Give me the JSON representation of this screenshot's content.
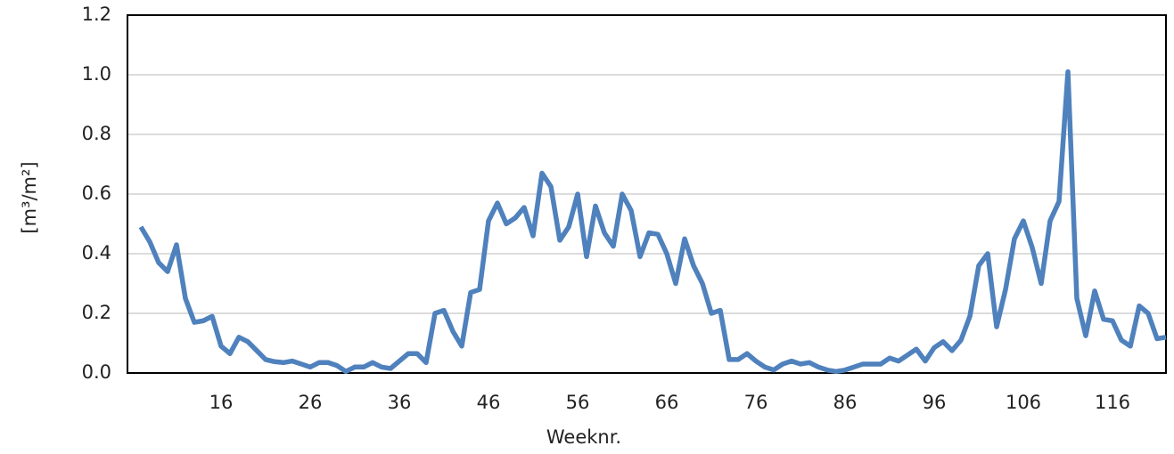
{
  "chart_data": {
    "type": "line",
    "xlabel": "Weeknr.",
    "ylabel": "[m³/m²]",
    "x": [
      7,
      8,
      9,
      10,
      11,
      12,
      13,
      14,
      15,
      16,
      17,
      18,
      19,
      20,
      21,
      22,
      23,
      24,
      25,
      26,
      27,
      28,
      29,
      30,
      31,
      32,
      33,
      34,
      35,
      36,
      37,
      38,
      39,
      40,
      41,
      42,
      43,
      44,
      45,
      46,
      47,
      48,
      49,
      50,
      51,
      52,
      53,
      54,
      55,
      56,
      57,
      58,
      59,
      60,
      61,
      62,
      63,
      64,
      65,
      66,
      67,
      68,
      69,
      70,
      71,
      72,
      73,
      74,
      75,
      76,
      77,
      78,
      79,
      80,
      81,
      82,
      83,
      84,
      85,
      86,
      87,
      88,
      89,
      90,
      91,
      92,
      93,
      94,
      95,
      96,
      97,
      98,
      99,
      100,
      101,
      102,
      103,
      104,
      105,
      106,
      107,
      108,
      109,
      110,
      111,
      112,
      113,
      114,
      115,
      116,
      117,
      118,
      119,
      120,
      121,
      122
    ],
    "series": [
      {
        "name": "[m³/m²]",
        "color": "#4f81bd",
        "values": [
          0.49,
          0.44,
          0.37,
          0.34,
          0.43,
          0.25,
          0.17,
          0.175,
          0.19,
          0.09,
          0.065,
          0.12,
          0.105,
          0.075,
          0.045,
          0.038,
          0.035,
          0.04,
          0.03,
          0.02,
          0.035,
          0.035,
          0.025,
          0.005,
          0.02,
          0.02,
          0.035,
          0.02,
          0.015,
          0.04,
          0.065,
          0.065,
          0.035,
          0.2,
          0.21,
          0.14,
          0.09,
          0.27,
          0.28,
          0.51,
          0.57,
          0.5,
          0.52,
          0.555,
          0.46,
          0.67,
          0.625,
          0.445,
          0.49,
          0.6,
          0.39,
          0.56,
          0.47,
          0.425,
          0.6,
          0.545,
          0.39,
          0.47,
          0.465,
          0.4,
          0.3,
          0.45,
          0.36,
          0.3,
          0.2,
          0.21,
          0.045,
          0.045,
          0.065,
          0.04,
          0.02,
          0.01,
          0.03,
          0.04,
          0.03,
          0.035,
          0.02,
          0.01,
          0.005,
          0.01,
          0.02,
          0.03,
          0.03,
          0.03,
          0.05,
          0.04,
          0.06,
          0.08,
          0.04,
          0.085,
          0.105,
          0.075,
          0.11,
          0.19,
          0.36,
          0.4,
          0.155,
          0.28,
          0.45,
          0.51,
          0.42,
          0.3,
          0.51,
          0.575,
          1.01,
          0.25,
          0.125,
          0.275,
          0.18,
          0.175,
          0.11,
          0.09,
          0.225,
          0.2,
          0.115,
          0.12
        ]
      }
    ],
    "xlim": [
      5.5,
      122
    ],
    "ylim": [
      0,
      1.2
    ],
    "xticks": [
      16,
      26,
      36,
      46,
      56,
      66,
      76,
      86,
      96,
      106,
      116
    ],
    "yticks": [
      {
        "value": 0,
        "label": "0.0"
      },
      {
        "value": 0.2,
        "label": "0.2"
      },
      {
        "value": 0.4,
        "label": "0.4"
      },
      {
        "value": 0.6,
        "label": "0.6"
      },
      {
        "value": 0.8,
        "label": "0.8"
      },
      {
        "value": 1,
        "label": "1.0"
      },
      {
        "value": 1.2,
        "label": "1.2"
      }
    ],
    "grid": true
  }
}
